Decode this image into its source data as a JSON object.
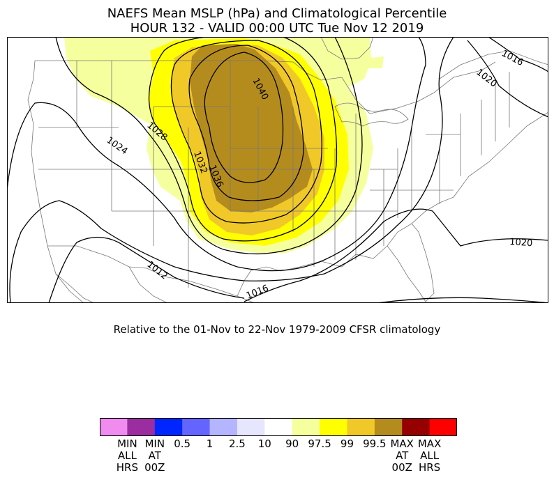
{
  "header": {
    "title_line1": "NAEFS Mean MSLP (hPa) and Climatological Percentile",
    "title_line2": "HOUR 132 - VALID 00:00 UTC Tue Nov 12 2019"
  },
  "subtitle": "Relative to the 01-Nov to 22-Nov 1979-2009 CFSR climatology",
  "isobar_labels": [
    "1040",
    "1036",
    "1032",
    "1028",
    "1024",
    "1020",
    "1016",
    "1012",
    "1020",
    "1016",
    "1020",
    "1016"
  ],
  "percentile_field": {
    "max_region": "MAX AT 00Z",
    "levels_shown": [
      "90",
      "97.5",
      "99",
      "99.5",
      "MAX AT 00Z"
    ]
  },
  "colorbar": {
    "colors": [
      "#f08cf0",
      "#9b2da0",
      "#0026ff",
      "#6464ff",
      "#b4b4ff",
      "#e6e6ff",
      "#ffffff",
      "#f5ff9e",
      "#ffff00",
      "#f0c828",
      "#b48c1e",
      "#960000",
      "#ff0000"
    ],
    "labels": [
      "MIN\nALL\nHRS",
      "MIN\nAT\n00Z",
      "0.5",
      "1",
      "2.5",
      "10",
      "90",
      "97.5",
      "99",
      "99.5",
      "MAX\nAT\n00Z",
      "MAX\nALL\nHRS"
    ]
  }
}
